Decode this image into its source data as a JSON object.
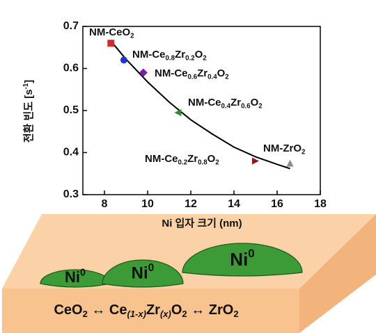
{
  "chart_data": {
    "type": "scatter",
    "xlabel": "Ni 입자 크기 (nm)",
    "ylabel": "전환 빈도 [s-1]",
    "xlim": [
      7,
      18
    ],
    "xticks": [
      8,
      10,
      12,
      14,
      16,
      18
    ],
    "ylim": [
      0.3,
      0.7
    ],
    "yticks": [
      0.3,
      0.4,
      0.5,
      0.6,
      0.7
    ],
    "series": [
      {
        "name": "NM-CeO2",
        "color": "#d42a2a",
        "marker": "square",
        "x": [
          8.3
        ],
        "values": [
          0.66
        ]
      },
      {
        "name": "NM-Ce0.8Zr0.2O2",
        "color": "#2436c8",
        "marker": "circle",
        "x": [
          8.9
        ],
        "values": [
          0.62
        ]
      },
      {
        "name": "NM-Ce0.6Zr0.4O2",
        "color": "#7b1fa2",
        "marker": "diamond",
        "x": [
          9.8
        ],
        "values": [
          0.59
        ]
      },
      {
        "name": "NM-Ce0.4Zr0.6O2",
        "color": "#2e8b2e",
        "marker": "triangle-left",
        "x": [
          11.4
        ],
        "values": [
          0.495
        ]
      },
      {
        "name": "NM-Ce0.2Zr0.8O2",
        "color": "#8b1a1a",
        "marker": "triangle-right",
        "x": [
          15.0
        ],
        "values": [
          0.38
        ]
      },
      {
        "name": "NM-ZrO2",
        "color": "#8c8c8c",
        "marker": "triangle-up",
        "x": [
          16.6
        ],
        "values": [
          0.375
        ]
      }
    ],
    "fit": {
      "color": "#000000",
      "x": [
        8.3,
        9,
        10,
        11,
        12,
        13,
        14,
        15,
        16,
        16.6
      ],
      "values": [
        0.665,
        0.622,
        0.568,
        0.52,
        0.478,
        0.444,
        0.413,
        0.39,
        0.372,
        0.362
      ]
    }
  },
  "diagram": {
    "particles": [
      "Ni0",
      "Ni0",
      "Ni0"
    ],
    "substrate_label": "CeO2 ↔ Ce(1-x)Zr(x)O2 ↔ ZrO2"
  }
}
